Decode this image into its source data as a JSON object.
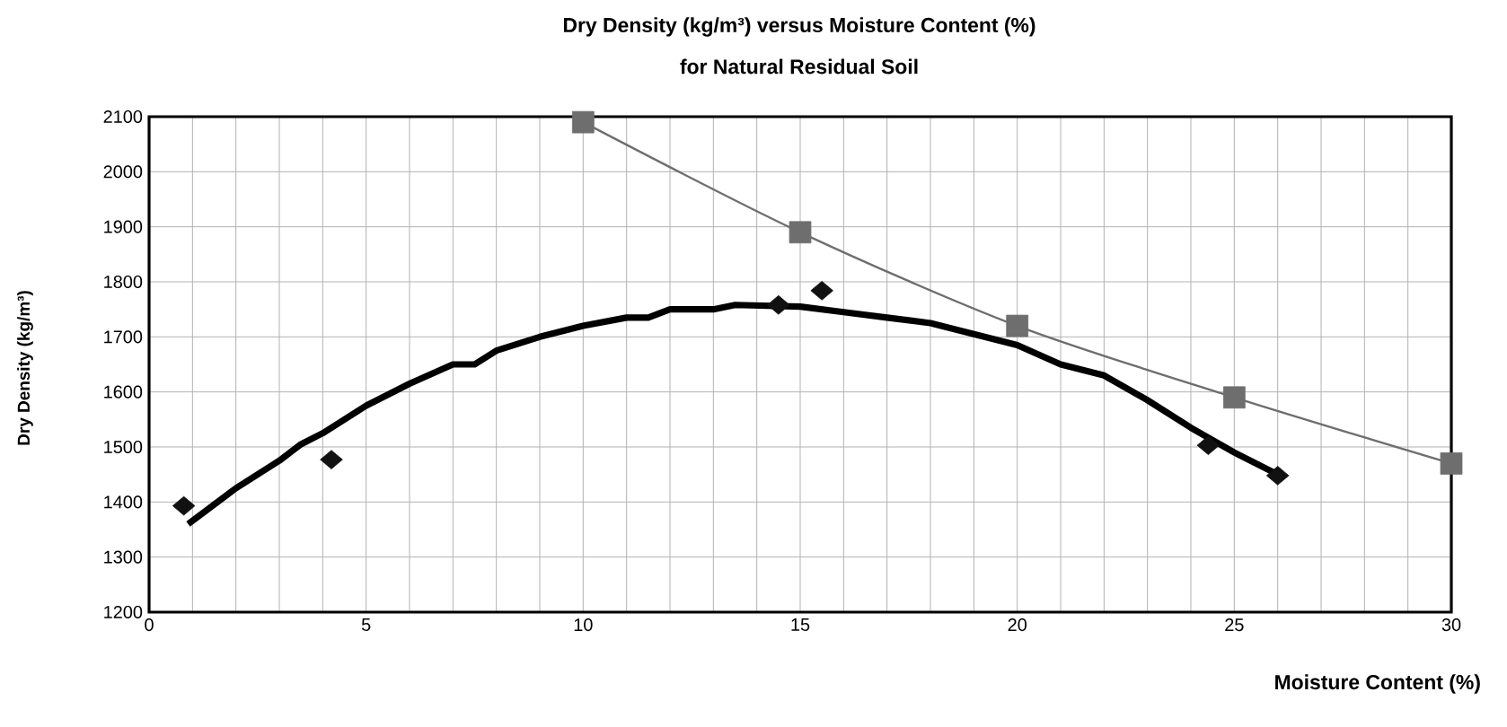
{
  "chart_data": {
    "type": "line",
    "title": "Dry Density (kg/m³) versus Moisture Content (%)",
    "subtitle": "for Natural Residual Soil",
    "xlabel": "Moisture Content (%)",
    "ylabel": "Dry Density (kg/m³)",
    "xlim": [
      0,
      30
    ],
    "ylim": [
      1200,
      2100
    ],
    "xticks": [
      0,
      {
        "value": 1,
        "label": null
      },
      {
        "value": 2,
        "label": null
      },
      {
        "value": 3,
        "label": null
      },
      {
        "value": 4,
        "label": null
      },
      5,
      {
        "value": 6,
        "label": null
      },
      {
        "value": 7,
        "label": null
      },
      {
        "value": 8,
        "label": null
      },
      {
        "value": 9,
        "label": null
      },
      10,
      {
        "value": 11,
        "label": null
      },
      {
        "value": 12,
        "label": null
      },
      {
        "value": 13,
        "label": null
      },
      {
        "value": 14,
        "label": null
      },
      15,
      {
        "value": 16,
        "label": null
      },
      {
        "value": 17,
        "label": null
      },
      {
        "value": 18,
        "label": null
      },
      {
        "value": 19,
        "label": null
      },
      20,
      {
        "value": 21,
        "label": null
      },
      {
        "value": 22,
        "label": null
      },
      {
        "value": 23,
        "label": null
      },
      {
        "value": 24,
        "label": null
      },
      25,
      {
        "value": 26,
        "label": null
      },
      {
        "value": 27,
        "label": null
      },
      {
        "value": 28,
        "label": null
      },
      {
        "value": 29,
        "label": null
      },
      30
    ],
    "yticks": [
      1200,
      1300,
      1400,
      1500,
      1600,
      1700,
      1800,
      1900,
      2000,
      2100
    ],
    "grid": true,
    "series": [
      {
        "color": "#000000",
        "marker": "none",
        "x": [
          0.9,
          2,
          3,
          3.5,
          4,
          5,
          6,
          7,
          7.5,
          8,
          9,
          10,
          11,
          11.5,
          12,
          13,
          13.5,
          15,
          16,
          17,
          18,
          19,
          20,
          21,
          22,
          23,
          24,
          25,
          26
        ],
        "values": [
          1360,
          1425,
          1475,
          1505,
          1525,
          1575,
          1615,
          1650,
          1650,
          1675,
          1700,
          1720,
          1735,
          1735,
          1750,
          1750,
          1758,
          1755,
          1745,
          1735,
          1725,
          1705,
          1685,
          1650,
          1630,
          1585,
          1535,
          1490,
          1450
        ]
      },
      {
        "type": "scatter",
        "color": "#111111",
        "marker": "diamond",
        "x": [
          0.8,
          4.2,
          14.5,
          15.5,
          24.4,
          26
        ],
        "values": [
          1393,
          1477,
          1758,
          1784,
          1503,
          1448
        ]
      },
      {
        "color": "#6e6e6e",
        "marker": "square",
        "x": [
          10,
          15,
          20,
          25,
          30
        ],
        "values": [
          2090,
          1890,
          1720,
          1590,
          1470
        ]
      }
    ]
  }
}
